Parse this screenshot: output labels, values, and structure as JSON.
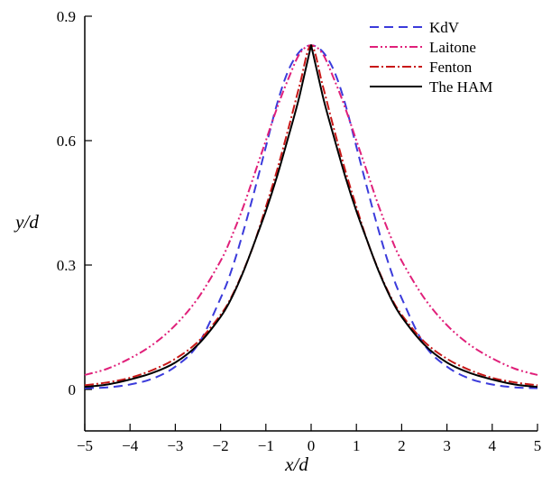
{
  "chart_data": {
    "type": "line",
    "xlabel": "x/d",
    "ylabel": "y/d",
    "xlim": [
      -5,
      5
    ],
    "ylim": [
      -0.1,
      0.9
    ],
    "x_ticks": [
      -5,
      -4,
      -3,
      -2,
      -1,
      0,
      1,
      2,
      3,
      4,
      5
    ],
    "x_tick_labels": [
      "−5",
      "−4",
      "−3",
      "−2",
      "−1",
      "0",
      "1",
      "2",
      "3",
      "4",
      "5"
    ],
    "y_ticks": [
      0,
      0.3,
      0.6,
      0.9
    ],
    "y_tick_labels": [
      "0",
      "0.3",
      "0.6",
      "0.9"
    ],
    "grid": false,
    "legend_position": "top-right",
    "x": [
      -5,
      -4.5,
      -4,
      -3.5,
      -3,
      -2.5,
      -2,
      -1.75,
      -1.5,
      -1.25,
      -1,
      -0.75,
      -0.5,
      -0.25,
      0,
      0.25,
      0.5,
      0.75,
      1,
      1.25,
      1.5,
      1.75,
      2,
      2.5,
      3,
      3.5,
      4,
      4.5,
      5
    ],
    "series": [
      {
        "name": "KdV",
        "color": "#3b3bdb",
        "dash": "dashed",
        "values": [
          0.003,
          0.005,
          0.012,
          0.026,
          0.055,
          0.108,
          0.22,
          0.29,
          0.38,
          0.48,
          0.585,
          0.69,
          0.77,
          0.815,
          0.83,
          0.815,
          0.77,
          0.69,
          0.585,
          0.48,
          0.38,
          0.29,
          0.22,
          0.108,
          0.055,
          0.026,
          0.012,
          0.005,
          0.003
        ]
      },
      {
        "name": "Laitone",
        "color": "#e0207a",
        "dash": "dash-dot-dot",
        "values": [
          0.035,
          0.05,
          0.075,
          0.108,
          0.155,
          0.22,
          0.31,
          0.37,
          0.44,
          0.52,
          0.6,
          0.68,
          0.75,
          0.81,
          0.83,
          0.81,
          0.75,
          0.68,
          0.6,
          0.52,
          0.44,
          0.37,
          0.31,
          0.22,
          0.155,
          0.108,
          0.075,
          0.05,
          0.035
        ]
      },
      {
        "name": "Fenton",
        "color": "#c81818",
        "dash": "dash-dot",
        "values": [
          0.01,
          0.017,
          0.028,
          0.047,
          0.074,
          0.115,
          0.18,
          0.225,
          0.285,
          0.355,
          0.44,
          0.53,
          0.63,
          0.735,
          0.83,
          0.735,
          0.63,
          0.53,
          0.44,
          0.355,
          0.285,
          0.225,
          0.18,
          0.115,
          0.074,
          0.047,
          0.028,
          0.017,
          0.01
        ]
      },
      {
        "name": "The HAM",
        "color": "#000000",
        "dash": "solid",
        "values": [
          0.006,
          0.012,
          0.024,
          0.04,
          0.065,
          0.108,
          0.175,
          0.222,
          0.283,
          0.355,
          0.43,
          0.515,
          0.61,
          0.71,
          0.83,
          0.71,
          0.61,
          0.515,
          0.43,
          0.355,
          0.283,
          0.222,
          0.175,
          0.108,
          0.065,
          0.04,
          0.024,
          0.012,
          0.006
        ]
      }
    ]
  }
}
